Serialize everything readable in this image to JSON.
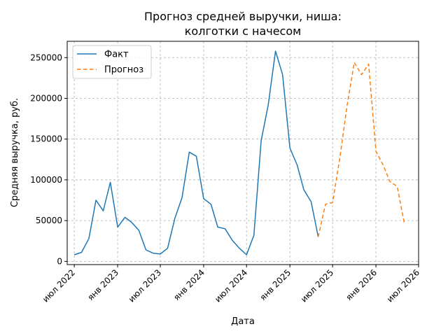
{
  "chart_data": {
    "type": "line",
    "title_lines": [
      "Прогноз средней выручки, ниша:",
      "колготки с начесом"
    ],
    "xlabel": "Дата",
    "ylabel": "Средняя выручка, руб.",
    "x_ticks": [
      {
        "date": "2022-07-01",
        "label": "июл 2022"
      },
      {
        "date": "2023-01-01",
        "label": "янв 2023"
      },
      {
        "date": "2023-07-01",
        "label": "июл 2023"
      },
      {
        "date": "2024-01-01",
        "label": "янв 2024"
      },
      {
        "date": "2024-07-01",
        "label": "июл 2024"
      },
      {
        "date": "2025-01-01",
        "label": "янв 2025"
      },
      {
        "date": "2025-07-01",
        "label": "июл 2025"
      },
      {
        "date": "2026-01-01",
        "label": "янв 2026"
      },
      {
        "date": "2026-07-01",
        "label": "июл 2026"
      }
    ],
    "y_ticks": [
      0,
      50000,
      100000,
      150000,
      200000,
      250000
    ],
    "xlim": [
      "2022-06-01",
      "2026-07-01"
    ],
    "ylim": [
      -4000,
      270000
    ],
    "grid": true,
    "legend_position": "top-left",
    "series": [
      {
        "name": "Факт",
        "color": "#1f77b4",
        "style": "solid",
        "points": [
          [
            "2022-07-01",
            8000
          ],
          [
            "2022-08-01",
            11000
          ],
          [
            "2022-09-01",
            28000
          ],
          [
            "2022-10-01",
            75000
          ],
          [
            "2022-11-01",
            62000
          ],
          [
            "2022-12-01",
            97000
          ],
          [
            "2023-01-01",
            42000
          ],
          [
            "2023-02-01",
            54000
          ],
          [
            "2023-03-01",
            48000
          ],
          [
            "2023-04-01",
            38000
          ],
          [
            "2023-05-01",
            14000
          ],
          [
            "2023-06-01",
            10000
          ],
          [
            "2023-07-01",
            9000
          ],
          [
            "2023-08-01",
            16000
          ],
          [
            "2023-09-01",
            53000
          ],
          [
            "2023-10-01",
            78000
          ],
          [
            "2023-11-01",
            134000
          ],
          [
            "2023-12-01",
            129000
          ],
          [
            "2024-01-01",
            77000
          ],
          [
            "2024-02-01",
            70000
          ],
          [
            "2024-03-01",
            42000
          ],
          [
            "2024-04-01",
            40000
          ],
          [
            "2024-05-01",
            26000
          ],
          [
            "2024-06-01",
            16000
          ],
          [
            "2024-07-01",
            8000
          ],
          [
            "2024-08-01",
            32000
          ],
          [
            "2024-09-01",
            148000
          ],
          [
            "2024-10-01",
            192000
          ],
          [
            "2024-11-01",
            258000
          ],
          [
            "2024-12-01",
            229000
          ],
          [
            "2025-01-01",
            139000
          ],
          [
            "2025-02-01",
            118000
          ],
          [
            "2025-03-01",
            88000
          ],
          [
            "2025-04-01",
            73000
          ],
          [
            "2025-05-01",
            30000
          ]
        ]
      },
      {
        "name": "Прогноз",
        "color": "#ff7f0e",
        "style": "dashed",
        "points": [
          [
            "2025-05-01",
            30000
          ],
          [
            "2025-06-01",
            70000
          ],
          [
            "2025-07-01",
            72000
          ],
          [
            "2025-08-01",
            127000
          ],
          [
            "2025-09-01",
            192000
          ],
          [
            "2025-10-01",
            244000
          ],
          [
            "2025-11-01",
            229000
          ],
          [
            "2025-12-01",
            242000
          ],
          [
            "2026-01-01",
            135000
          ],
          [
            "2026-02-01",
            118000
          ],
          [
            "2026-03-01",
            98000
          ],
          [
            "2026-04-01",
            92000
          ],
          [
            "2026-05-01",
            47000
          ]
        ]
      }
    ]
  }
}
